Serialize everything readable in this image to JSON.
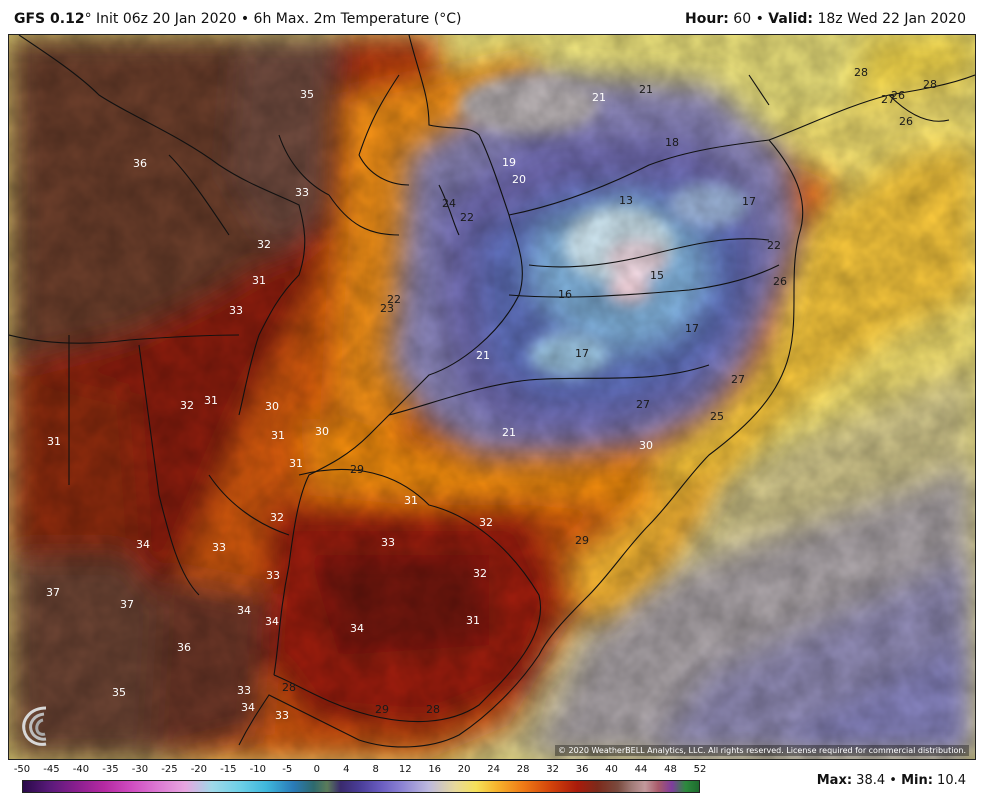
{
  "header": {
    "model": "GFS 0.12",
    "degree_sym": "°",
    "init_text": " Init 06z 20 Jan 2020 • 6h Max. 2m Temperature (°C)",
    "hour_label": "Hour:",
    "hour_value": " 60 • ",
    "valid_label": "Valid:",
    "valid_value": " 18z Wed 22 Jan 2020"
  },
  "map": {
    "region": "Southern Brazil / Uruguay / Paraguay / NE Argentina",
    "copyright": "© 2020 WeatherBELL Analytics, LLC. All rights reserved. License required for commercial distribution.",
    "temperature_labels": [
      {
        "text": "35"
      },
      {
        "text": "36"
      },
      {
        "text": "33"
      },
      {
        "text": "32"
      },
      {
        "text": "31"
      },
      {
        "text": "33"
      },
      {
        "text": "21"
      },
      {
        "text": "21"
      },
      {
        "text": "19"
      },
      {
        "text": "20"
      },
      {
        "text": "18"
      },
      {
        "text": "13"
      },
      {
        "text": "17"
      },
      {
        "text": "24"
      },
      {
        "text": "22"
      },
      {
        "text": "22"
      },
      {
        "text": "23"
      },
      {
        "text": "16"
      },
      {
        "text": "15"
      },
      {
        "text": "17"
      },
      {
        "text": "17"
      },
      {
        "text": "21"
      },
      {
        "text": "21"
      },
      {
        "text": "28"
      },
      {
        "text": "27"
      },
      {
        "text": "26"
      },
      {
        "text": "28"
      },
      {
        "text": "26"
      },
      {
        "text": "22"
      },
      {
        "text": "26"
      },
      {
        "text": "27"
      },
      {
        "text": "25"
      },
      {
        "text": "27"
      },
      {
        "text": "30"
      },
      {
        "text": "32"
      },
      {
        "text": "31"
      },
      {
        "text": "30"
      },
      {
        "text": "31"
      },
      {
        "text": "30"
      },
      {
        "text": "31"
      },
      {
        "text": "32"
      },
      {
        "text": "29"
      },
      {
        "text": "31"
      },
      {
        "text": "32"
      },
      {
        "text": "34"
      },
      {
        "text": "33"
      },
      {
        "text": "33"
      },
      {
        "text": "32"
      },
      {
        "text": "29"
      },
      {
        "text": "37"
      },
      {
        "text": "37"
      },
      {
        "text": "33"
      },
      {
        "text": "34"
      },
      {
        "text": "34"
      },
      {
        "text": "34"
      },
      {
        "text": "31"
      },
      {
        "text": "36"
      },
      {
        "text": "35"
      },
      {
        "text": "33"
      },
      {
        "text": "28"
      },
      {
        "text": "34"
      },
      {
        "text": "33"
      },
      {
        "text": "29"
      },
      {
        "text": "28"
      },
      {
        "text": "31"
      }
    ]
  },
  "colorbar": {
    "ticks": [
      "-50",
      "-45",
      "-40",
      "-35",
      "-30",
      "-25",
      "-20",
      "-15",
      "-10",
      "-5",
      "0",
      "4",
      "8",
      "12",
      "16",
      "20",
      "24",
      "28",
      "32",
      "36",
      "40",
      "44",
      "48",
      "52"
    ]
  },
  "stats": {
    "max_label": "Max:",
    "max_value": " 38.4 • ",
    "min_label": "Min:",
    "min_value": " 10.4"
  }
}
